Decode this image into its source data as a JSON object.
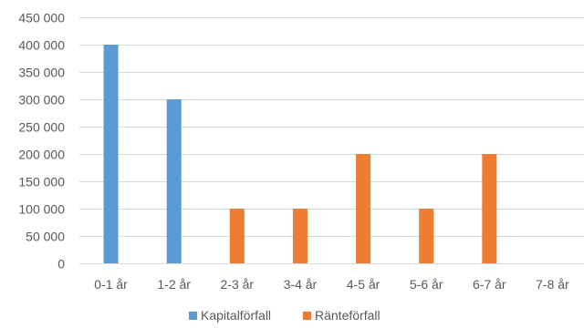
{
  "chart_data": {
    "type": "bar",
    "categories": [
      "0-1 år",
      "1-2 år",
      "2-3 år",
      "3-4 år",
      "4-5 år",
      "5-6 år",
      "6-7 år",
      "7-8 år"
    ],
    "series": [
      {
        "name": "Kapitalförfall",
        "color": "#5b9bd5",
        "values": [
          400000,
          300000,
          0,
          0,
          0,
          0,
          0,
          0
        ]
      },
      {
        "name": "Ränteförfall",
        "color": "#ed7d31",
        "values": [
          0,
          0,
          100000,
          100000,
          200000,
          100000,
          200000,
          0
        ]
      }
    ],
    "ylim": [
      0,
      450000
    ],
    "yticks": [
      0,
      50000,
      100000,
      150000,
      200000,
      250000,
      300000,
      350000,
      400000,
      450000
    ],
    "ytick_labels": [
      "0",
      "50 000",
      "100 000",
      "150 000",
      "200 000",
      "250 000",
      "300 000",
      "350 000",
      "400 000",
      "450 000"
    ],
    "grid": true,
    "legend_position": "bottom",
    "title": "",
    "xlabel": "",
    "ylabel": ""
  }
}
